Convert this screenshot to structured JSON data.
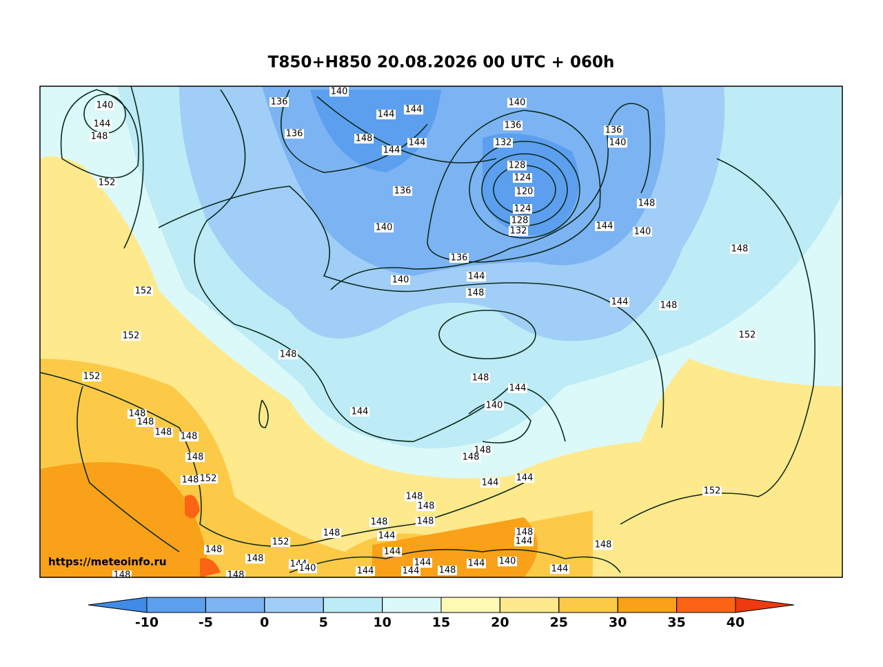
{
  "title": "T850+H850 20.08.2026 00 UTC + 060h",
  "watermark": "https://meteoinfo.ru",
  "contour_labels": [
    140,
    144,
    148,
    136,
    140,
    144,
    144,
    136,
    148,
    144,
    144,
    140,
    136,
    132,
    128,
    124,
    120,
    124,
    128,
    132,
    136,
    140,
    148,
    144,
    140,
    148,
    152,
    136,
    140,
    136,
    140,
    144,
    148,
    144,
    148,
    152,
    152,
    152,
    148,
    152,
    148,
    144,
    140,
    144,
    148,
    148,
    148,
    148,
    148,
    148,
    148,
    148,
    152,
    144,
    144,
    152,
    148,
    148,
    148,
    148,
    148,
    144,
    148,
    144,
    152,
    144,
    148,
    148,
    148,
    144,
    140,
    144,
    144,
    140,
    144,
    144,
    148,
    144,
    148,
    148
  ],
  "colorbar": {
    "ticks": [
      -10,
      -5,
      0,
      5,
      10,
      15,
      20,
      25,
      30,
      35,
      40
    ],
    "colors": [
      "#3f8be6",
      "#5c9fef",
      "#7cb3f3",
      "#a0cef6",
      "#bdebf6",
      "#dcf9f9",
      "#fff9b4",
      "#fee98c",
      "#fdca48",
      "#f9a118",
      "#fb6414",
      "#ee3a10"
    ]
  }
}
